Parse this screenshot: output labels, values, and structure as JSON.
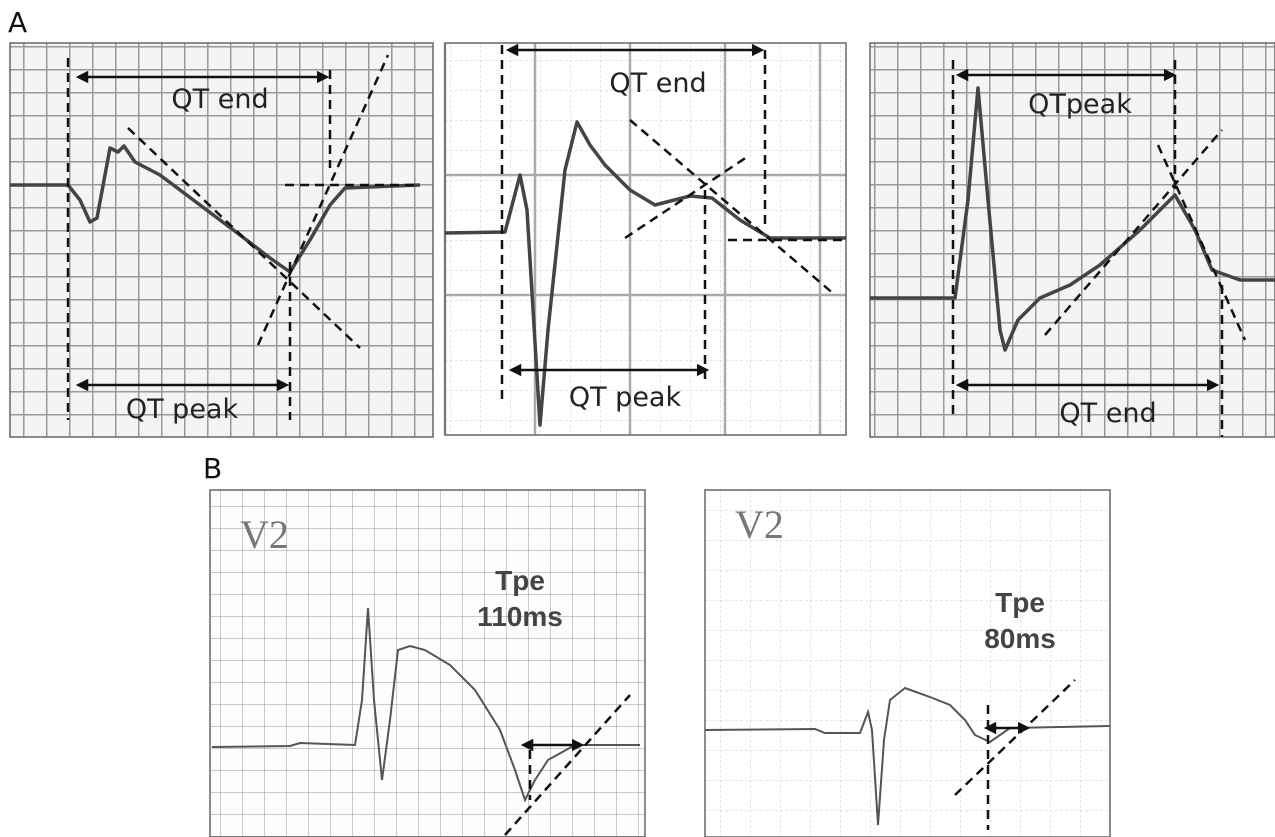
{
  "panel_a": {
    "label": "A",
    "panels": [
      {
        "top_label": "QT end",
        "bottom_label": "QT peak"
      },
      {
        "top_label": "QT end",
        "bottom_label": "QT peak"
      },
      {
        "top_label": "QTpeak",
        "bottom_label": "QT end"
      }
    ]
  },
  "panel_b": {
    "label": "B",
    "panels": [
      {
        "lead": "V2",
        "measure_name": "Tpe",
        "measure_value": "110ms"
      },
      {
        "lead": "V2",
        "measure_name": "Tpe",
        "measure_value": "80ms"
      }
    ]
  }
}
